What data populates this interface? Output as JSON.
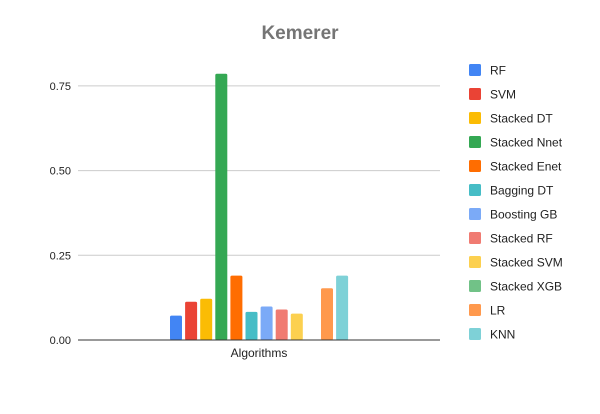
{
  "chart_data": {
    "type": "bar",
    "title": "Kemerer",
    "xlabel": "",
    "ylabel": "",
    "categories": [
      "Algorithms"
    ],
    "ylim": [
      0,
      0.85
    ],
    "yticks": [
      {
        "value": 0,
        "label": "0.00"
      },
      {
        "value": 0.25,
        "label": "0.25"
      },
      {
        "value": 0.5,
        "label": "0.50"
      },
      {
        "value": 0.75,
        "label": "0.75"
      }
    ],
    "grid": true,
    "legend_position": "right",
    "series": [
      {
        "name": "RF",
        "values": [
          0.072
        ],
        "color": "#4285f4"
      },
      {
        "name": "SVM",
        "values": [
          0.113
        ],
        "color": "#ea4335"
      },
      {
        "name": "Stacked DT",
        "values": [
          0.122
        ],
        "color": "#fbbc04"
      },
      {
        "name": "Stacked Nnet",
        "values": [
          0.786
        ],
        "color": "#34a853"
      },
      {
        "name": "Stacked Enet",
        "values": [
          0.19
        ],
        "color": "#ff6d01"
      },
      {
        "name": "Bagging DT",
        "values": [
          0.083
        ],
        "color": "#46bdc6"
      },
      {
        "name": "Boosting GB",
        "values": [
          0.099
        ],
        "color": "#7baaf7"
      },
      {
        "name": "Stacked RF",
        "values": [
          0.09
        ],
        "color": "#f07b72"
      },
      {
        "name": "Stacked SVM",
        "values": [
          0.078
        ],
        "color": "#fcd04f"
      },
      {
        "name": "Stacked XGB",
        "values": [
          0.0
        ],
        "color": "#71c287"
      },
      {
        "name": "LR",
        "values": [
          0.153
        ],
        "color": "#ff994d"
      },
      {
        "name": "KNN",
        "values": [
          0.19
        ],
        "color": "#7ed1d7"
      }
    ]
  }
}
